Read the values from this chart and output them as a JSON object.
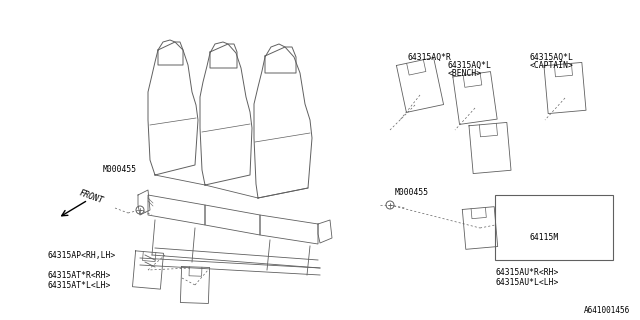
{
  "bg_color": "#ffffff",
  "line_color": "#606060",
  "text_color": "#000000",
  "diagram_id": "A641001456",
  "labels": {
    "part1": "64315AQ*R",
    "part2_line1": "64315AQ*L",
    "part2_line2": "<BENCH>",
    "part3_line1": "64315AQ*L",
    "part3_line2": "<CAPTAIN>",
    "bolt1": "M000455",
    "bolt2": "M000455",
    "part4": "64115M",
    "part5_line1": "64315AP<RH,LH>",
    "part6_line1": "64315AT*R<RH>",
    "part6_line2": "64315AT*L<LH>",
    "part7_line1": "64315AU*R<RH>",
    "part7_line2": "64315AU*L<LH>",
    "front": "FRONT"
  }
}
